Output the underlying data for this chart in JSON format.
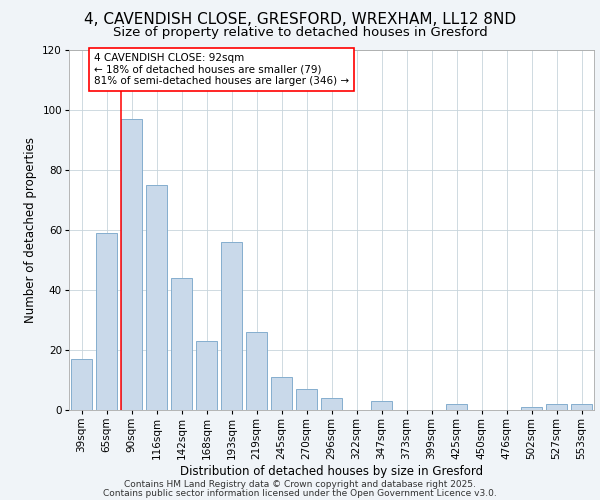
{
  "title1": "4, CAVENDISH CLOSE, GRESFORD, WREXHAM, LL12 8ND",
  "title2": "Size of property relative to detached houses in Gresford",
  "xlabel": "Distribution of detached houses by size in Gresford",
  "ylabel": "Number of detached properties",
  "categories": [
    "39sqm",
    "65sqm",
    "90sqm",
    "116sqm",
    "142sqm",
    "168sqm",
    "193sqm",
    "219sqm",
    "245sqm",
    "270sqm",
    "296sqm",
    "322sqm",
    "347sqm",
    "373sqm",
    "399sqm",
    "425sqm",
    "450sqm",
    "476sqm",
    "502sqm",
    "527sqm",
    "553sqm"
  ],
  "values": [
    17,
    59,
    97,
    75,
    44,
    23,
    56,
    26,
    11,
    7,
    4,
    0,
    3,
    0,
    0,
    2,
    0,
    0,
    1,
    2,
    2
  ],
  "bar_color": "#c9d9ea",
  "bar_edge_color": "#85aece",
  "red_line_index": 2,
  "ylim": [
    0,
    120
  ],
  "yticks": [
    0,
    20,
    40,
    60,
    80,
    100,
    120
  ],
  "annotation_title": "4 CAVENDISH CLOSE: 92sqm",
  "annotation_line1": "← 18% of detached houses are smaller (79)",
  "annotation_line2": "81% of semi-detached houses are larger (346) →",
  "footer1": "Contains HM Land Registry data © Crown copyright and database right 2025.",
  "footer2": "Contains public sector information licensed under the Open Government Licence v3.0.",
  "background_color": "#f0f4f8",
  "plot_bg_color": "#ffffff",
  "grid_color": "#c8d4dc",
  "title_fontsize": 11,
  "subtitle_fontsize": 9.5,
  "axis_label_fontsize": 8.5,
  "tick_fontsize": 7.5,
  "footer_fontsize": 6.5,
  "annotation_fontsize": 7.5
}
